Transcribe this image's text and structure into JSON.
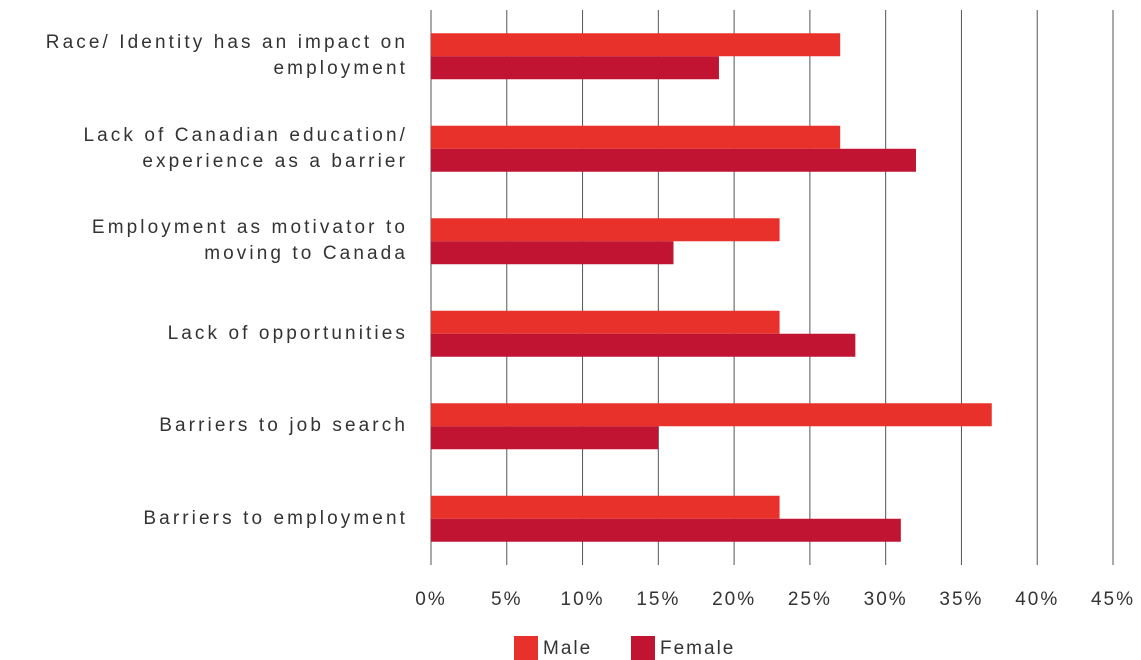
{
  "chart_data": {
    "type": "hbar",
    "categories": [
      "Race/ Identity has an impact on employment",
      "Lack of Canadian education/ experience as a barrier",
      "Employment as motivator to moving to Canada",
      "Lack of opportunities",
      "Barriers to job search",
      "Barriers to employment"
    ],
    "series": [
      {
        "name": "Male",
        "color": "#e8312a",
        "values": [
          27,
          27,
          23,
          23,
          37,
          23
        ]
      },
      {
        "name": "Female",
        "color": "#c01432",
        "values": [
          19,
          32,
          16,
          28,
          15,
          31
        ]
      }
    ],
    "xlim": [
      0,
      45
    ],
    "xticks": [
      {
        "value": 0,
        "label": "0%"
      },
      {
        "value": 5,
        "label": "5%"
      },
      {
        "value": 10,
        "label": "10%"
      },
      {
        "value": 15,
        "label": "15%"
      },
      {
        "value": 20,
        "label": "20%"
      },
      {
        "value": 25,
        "label": "25%"
      },
      {
        "value": 30,
        "label": "30%"
      },
      {
        "value": 35,
        "label": "35%"
      },
      {
        "value": 40,
        "label": "40%"
      },
      {
        "value": 45,
        "label": "45%"
      }
    ],
    "grid": true,
    "legend": "bottom"
  }
}
